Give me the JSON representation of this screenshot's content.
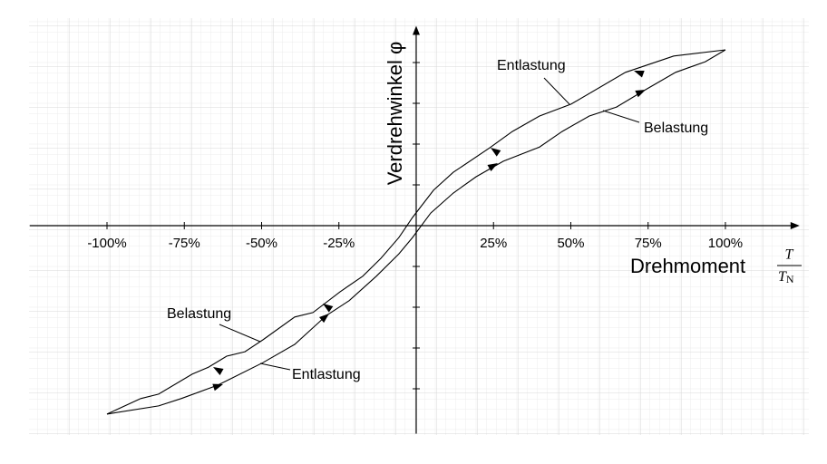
{
  "chart_data": {
    "type": "line",
    "x_label": "Drehmoment",
    "x_label_fraction": {
      "numerator": "T",
      "denominator": "T",
      "subscript": "N"
    },
    "y_label": "Verdrehwinkel φ",
    "annotations": [
      "Entlastung",
      "Belastung",
      "Belastung",
      "Entlastung"
    ],
    "xlim": [
      -125,
      124
    ],
    "ylim": [
      -5.1,
      4.9
    ],
    "xticks": [
      {
        "value": -100,
        "label": "-100%"
      },
      {
        "value": -75,
        "label": "-75%"
      },
      {
        "value": -50,
        "label": "-50%"
      },
      {
        "value": -25,
        "label": "-25%"
      },
      {
        "value": 25,
        "label": "25%"
      },
      {
        "value": 50,
        "label": "50%"
      },
      {
        "value": 75,
        "label": "75%"
      },
      {
        "value": 100,
        "label": "100%"
      }
    ],
    "yticks": [
      -4,
      -3,
      -2,
      -1,
      1,
      2,
      3,
      4
    ],
    "series": [
      {
        "color": "#000000",
        "x": [
          100,
          83.3,
          67.7,
          50.1,
          39.9,
          31.1,
          23.8,
          12.0,
          5.6,
          -1.2,
          -5.6,
          -11.4,
          -17.3,
          -24.6,
          -33.4,
          -39.3,
          -49.6,
          -55.4,
          -61.3,
          -67.2,
          -72.4,
          -83.3,
          -89.1,
          -100
        ],
        "values": [
          4.31,
          4.16,
          3.76,
          2.98,
          2.69,
          2.31,
          1.91,
          1.31,
          0.87,
          0.2,
          -0.29,
          -0.8,
          -1.24,
          -1.62,
          -2.13,
          -2.24,
          -2.8,
          -3.09,
          -3.2,
          -3.47,
          -3.64,
          -4.13,
          -4.24,
          -4.62
        ]
      },
      {
        "color": "#000000",
        "x": [
          -100,
          -83.3,
          -76.0,
          -64.2,
          -49.6,
          -39.3,
          -29.0,
          -21.7,
          -12.9,
          -5.6,
          -1.2,
          4.7,
          12.0,
          19.4,
          28.2,
          39.9,
          47.2,
          56.0,
          64.8,
          73.6,
          83.9,
          93.5,
          100
        ],
        "values": [
          -4.62,
          -4.42,
          -4.24,
          -3.91,
          -3.36,
          -2.91,
          -2.2,
          -1.84,
          -1.24,
          -0.69,
          -0.29,
          0.31,
          0.8,
          1.2,
          1.58,
          1.93,
          2.31,
          2.69,
          2.91,
          3.31,
          3.76,
          4.02,
          4.31
        ]
      }
    ]
  }
}
